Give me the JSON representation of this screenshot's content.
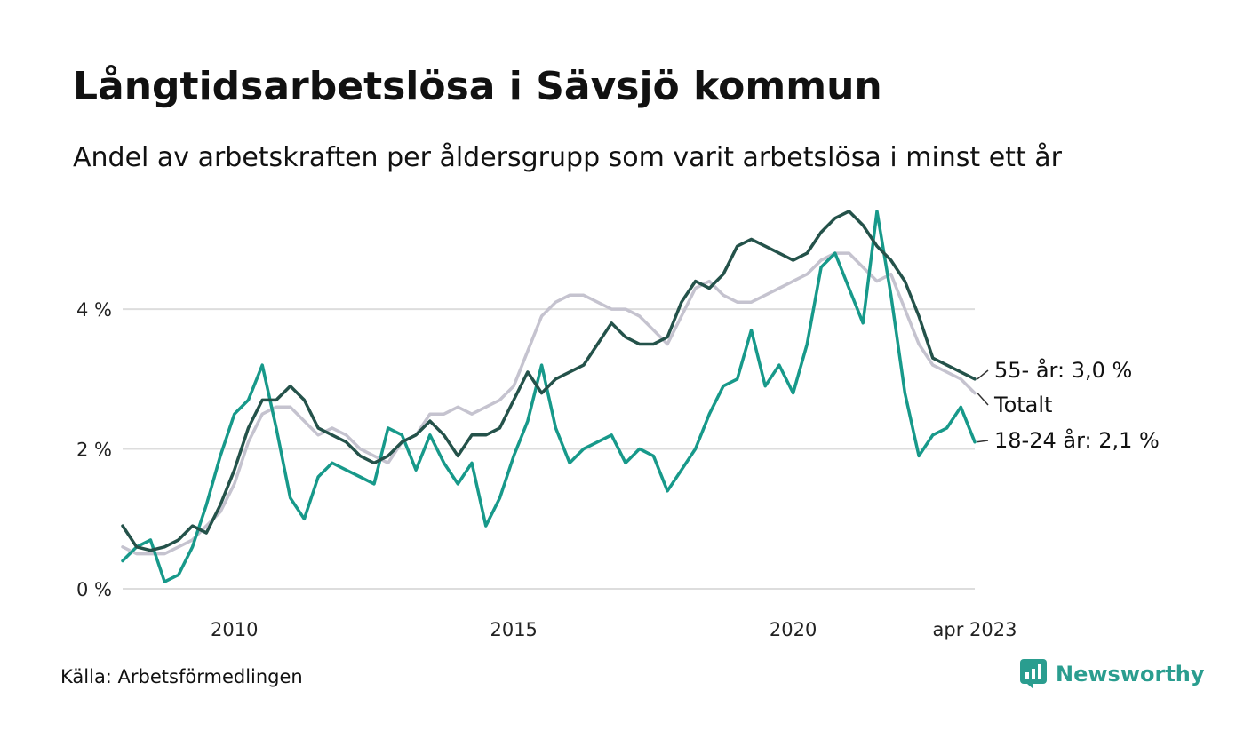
{
  "title": "Långtidsarbetslösa i Sävsjö kommun",
  "subtitle": "Andel av arbetskraften per åldersgrupp som varit arbetslösa i minst ett år",
  "source": "Källa: Arbetsförmedlingen",
  "brand": "Newsworthy",
  "colors": {
    "total": "#c5c3cf",
    "age55": "#24524a",
    "age18": "#17998a",
    "grid": "#dddddd",
    "brand": "#2a9d8f"
  },
  "chart_data": {
    "type": "line",
    "xlabel": "",
    "ylabel": "",
    "ylim": [
      0,
      5.5
    ],
    "xlim": [
      2008.0,
      2023.25
    ],
    "grid": true,
    "yticks": [
      {
        "value": 0,
        "label": "0 %"
      },
      {
        "value": 2,
        "label": "2 %"
      },
      {
        "value": 4,
        "label": "4 %"
      }
    ],
    "xticks": [
      {
        "value": 2010,
        "label": "2010"
      },
      {
        "value": 2015,
        "label": "2015"
      },
      {
        "value": 2020,
        "label": "2020"
      },
      {
        "value": 2023.25,
        "label": "apr 2023"
      }
    ],
    "series": [
      {
        "key": "total",
        "name": "Totalt",
        "end_label": "Totalt",
        "points": [
          [
            2008.0,
            0.6
          ],
          [
            2008.25,
            0.5
          ],
          [
            2008.5,
            0.5
          ],
          [
            2008.75,
            0.5
          ],
          [
            2009.0,
            0.6
          ],
          [
            2009.25,
            0.7
          ],
          [
            2009.5,
            0.9
          ],
          [
            2009.75,
            1.1
          ],
          [
            2010.0,
            1.5
          ],
          [
            2010.25,
            2.1
          ],
          [
            2010.5,
            2.5
          ],
          [
            2010.75,
            2.6
          ],
          [
            2011.0,
            2.6
          ],
          [
            2011.25,
            2.4
          ],
          [
            2011.5,
            2.2
          ],
          [
            2011.75,
            2.3
          ],
          [
            2012.0,
            2.2
          ],
          [
            2012.25,
            2.0
          ],
          [
            2012.5,
            1.9
          ],
          [
            2012.75,
            1.8
          ],
          [
            2013.0,
            2.1
          ],
          [
            2013.25,
            2.2
          ],
          [
            2013.5,
            2.5
          ],
          [
            2013.75,
            2.5
          ],
          [
            2014.0,
            2.6
          ],
          [
            2014.25,
            2.5
          ],
          [
            2014.5,
            2.6
          ],
          [
            2014.75,
            2.7
          ],
          [
            2015.0,
            2.9
          ],
          [
            2015.25,
            3.4
          ],
          [
            2015.5,
            3.9
          ],
          [
            2015.75,
            4.1
          ],
          [
            2016.0,
            4.2
          ],
          [
            2016.25,
            4.2
          ],
          [
            2016.5,
            4.1
          ],
          [
            2016.75,
            4.0
          ],
          [
            2017.0,
            4.0
          ],
          [
            2017.25,
            3.9
          ],
          [
            2017.5,
            3.7
          ],
          [
            2017.75,
            3.5
          ],
          [
            2018.0,
            3.9
          ],
          [
            2018.25,
            4.3
          ],
          [
            2018.5,
            4.4
          ],
          [
            2018.75,
            4.2
          ],
          [
            2019.0,
            4.1
          ],
          [
            2019.25,
            4.1
          ],
          [
            2019.5,
            4.2
          ],
          [
            2019.75,
            4.3
          ],
          [
            2020.0,
            4.4
          ],
          [
            2020.25,
            4.5
          ],
          [
            2020.5,
            4.7
          ],
          [
            2020.75,
            4.8
          ],
          [
            2021.0,
            4.8
          ],
          [
            2021.25,
            4.6
          ],
          [
            2021.5,
            4.4
          ],
          [
            2021.75,
            4.5
          ],
          [
            2022.0,
            4.0
          ],
          [
            2022.25,
            3.5
          ],
          [
            2022.5,
            3.2
          ],
          [
            2022.75,
            3.1
          ],
          [
            2023.0,
            3.0
          ],
          [
            2023.25,
            2.8
          ]
        ]
      },
      {
        "key": "age55",
        "name": "55- år",
        "end_label": "55- år: 3,0 %",
        "points": [
          [
            2008.0,
            0.9
          ],
          [
            2008.25,
            0.6
          ],
          [
            2008.5,
            0.55
          ],
          [
            2008.75,
            0.6
          ],
          [
            2009.0,
            0.7
          ],
          [
            2009.25,
            0.9
          ],
          [
            2009.5,
            0.8
          ],
          [
            2009.75,
            1.2
          ],
          [
            2010.0,
            1.7
          ],
          [
            2010.25,
            2.3
          ],
          [
            2010.5,
            2.7
          ],
          [
            2010.75,
            2.7
          ],
          [
            2011.0,
            2.9
          ],
          [
            2011.25,
            2.7
          ],
          [
            2011.5,
            2.3
          ],
          [
            2011.75,
            2.2
          ],
          [
            2012.0,
            2.1
          ],
          [
            2012.25,
            1.9
          ],
          [
            2012.5,
            1.8
          ],
          [
            2012.75,
            1.9
          ],
          [
            2013.0,
            2.1
          ],
          [
            2013.25,
            2.2
          ],
          [
            2013.5,
            2.4
          ],
          [
            2013.75,
            2.2
          ],
          [
            2014.0,
            1.9
          ],
          [
            2014.25,
            2.2
          ],
          [
            2014.5,
            2.2
          ],
          [
            2014.75,
            2.3
          ],
          [
            2015.0,
            2.7
          ],
          [
            2015.25,
            3.1
          ],
          [
            2015.5,
            2.8
          ],
          [
            2015.75,
            3.0
          ],
          [
            2016.0,
            3.1
          ],
          [
            2016.25,
            3.2
          ],
          [
            2016.5,
            3.5
          ],
          [
            2016.75,
            3.8
          ],
          [
            2017.0,
            3.6
          ],
          [
            2017.25,
            3.5
          ],
          [
            2017.5,
            3.5
          ],
          [
            2017.75,
            3.6
          ],
          [
            2018.0,
            4.1
          ],
          [
            2018.25,
            4.4
          ],
          [
            2018.5,
            4.3
          ],
          [
            2018.75,
            4.5
          ],
          [
            2019.0,
            4.9
          ],
          [
            2019.25,
            5.0
          ],
          [
            2019.5,
            4.9
          ],
          [
            2019.75,
            4.8
          ],
          [
            2020.0,
            4.7
          ],
          [
            2020.25,
            4.8
          ],
          [
            2020.5,
            5.1
          ],
          [
            2020.75,
            5.3
          ],
          [
            2021.0,
            5.4
          ],
          [
            2021.25,
            5.2
          ],
          [
            2021.5,
            4.9
          ],
          [
            2021.75,
            4.7
          ],
          [
            2022.0,
            4.4
          ],
          [
            2022.25,
            3.9
          ],
          [
            2022.5,
            3.3
          ],
          [
            2022.75,
            3.2
          ],
          [
            2023.0,
            3.1
          ],
          [
            2023.25,
            3.0
          ]
        ]
      },
      {
        "key": "age18",
        "name": "18-24 år",
        "end_label": "18-24 år: 2,1 %",
        "points": [
          [
            2008.0,
            0.4
          ],
          [
            2008.25,
            0.6
          ],
          [
            2008.5,
            0.7
          ],
          [
            2008.75,
            0.1
          ],
          [
            2009.0,
            0.2
          ],
          [
            2009.25,
            0.6
          ],
          [
            2009.5,
            1.2
          ],
          [
            2009.75,
            1.9
          ],
          [
            2010.0,
            2.5
          ],
          [
            2010.25,
            2.7
          ],
          [
            2010.5,
            3.2
          ],
          [
            2010.75,
            2.3
          ],
          [
            2011.0,
            1.3
          ],
          [
            2011.25,
            1.0
          ],
          [
            2011.5,
            1.6
          ],
          [
            2011.75,
            1.8
          ],
          [
            2012.0,
            1.7
          ],
          [
            2012.25,
            1.6
          ],
          [
            2012.5,
            1.5
          ],
          [
            2012.75,
            2.3
          ],
          [
            2013.0,
            2.2
          ],
          [
            2013.25,
            1.7
          ],
          [
            2013.5,
            2.2
          ],
          [
            2013.75,
            1.8
          ],
          [
            2014.0,
            1.5
          ],
          [
            2014.25,
            1.8
          ],
          [
            2014.5,
            0.9
          ],
          [
            2014.75,
            1.3
          ],
          [
            2015.0,
            1.9
          ],
          [
            2015.25,
            2.4
          ],
          [
            2015.5,
            3.2
          ],
          [
            2015.75,
            2.3
          ],
          [
            2016.0,
            1.8
          ],
          [
            2016.25,
            2.0
          ],
          [
            2016.5,
            2.1
          ],
          [
            2016.75,
            2.2
          ],
          [
            2017.0,
            1.8
          ],
          [
            2017.25,
            2.0
          ],
          [
            2017.5,
            1.9
          ],
          [
            2017.75,
            1.4
          ],
          [
            2018.0,
            1.7
          ],
          [
            2018.25,
            2.0
          ],
          [
            2018.5,
            2.5
          ],
          [
            2018.75,
            2.9
          ],
          [
            2019.0,
            3.0
          ],
          [
            2019.25,
            3.7
          ],
          [
            2019.5,
            2.9
          ],
          [
            2019.75,
            3.2
          ],
          [
            2020.0,
            2.8
          ],
          [
            2020.25,
            3.5
          ],
          [
            2020.5,
            4.6
          ],
          [
            2020.75,
            4.8
          ],
          [
            2021.0,
            4.3
          ],
          [
            2021.25,
            3.8
          ],
          [
            2021.5,
            5.4
          ],
          [
            2021.75,
            4.2
          ],
          [
            2022.0,
            2.8
          ],
          [
            2022.25,
            1.9
          ],
          [
            2022.5,
            2.2
          ],
          [
            2022.75,
            2.3
          ],
          [
            2023.0,
            2.6
          ],
          [
            2023.25,
            2.1
          ]
        ]
      }
    ]
  }
}
